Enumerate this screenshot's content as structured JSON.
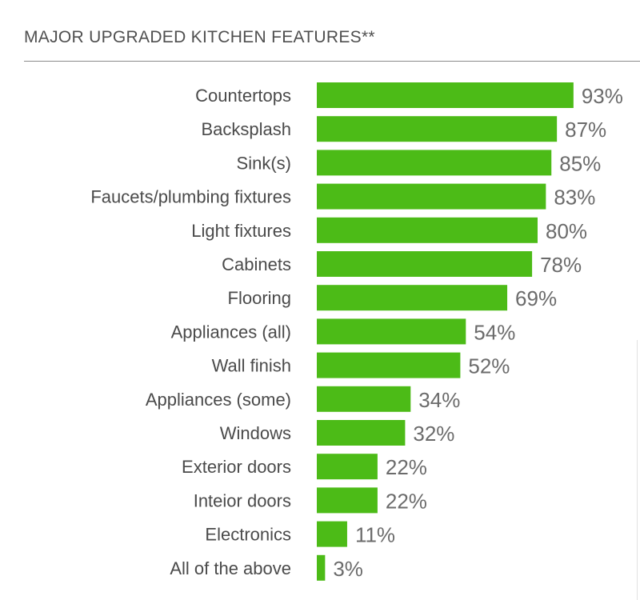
{
  "header": {
    "title": "MAJOR UPGRADED KITCHEN FEATURES**"
  },
  "chart_data": {
    "type": "bar",
    "orientation": "horizontal",
    "title": "MAJOR UPGRADED KITCHEN FEATURES**",
    "xlabel": "",
    "ylabel": "",
    "xlim": [
      0,
      100
    ],
    "grid": false,
    "legend": "none",
    "bar_color": "#4cbb17",
    "categories": [
      "Countertops",
      "Backsplash",
      "Sink(s)",
      "Faucets/plumbing fixtures",
      "Light fixtures",
      "Cabinets",
      "Flooring",
      "Appliances (all)",
      "Wall finish",
      "Appliances (some)",
      "Windows",
      "Exterior doors",
      "Inteior doors",
      "Electronics",
      "All of the above"
    ],
    "values": [
      93,
      87,
      85,
      83,
      80,
      78,
      69,
      54,
      52,
      34,
      32,
      22,
      22,
      11,
      3
    ],
    "value_labels": [
      "93%",
      "87%",
      "85%",
      "83%",
      "80%",
      "78%",
      "69%",
      "54%",
      "52%",
      "34%",
      "32%",
      "22%",
      "22%",
      "11%",
      "3%"
    ]
  }
}
